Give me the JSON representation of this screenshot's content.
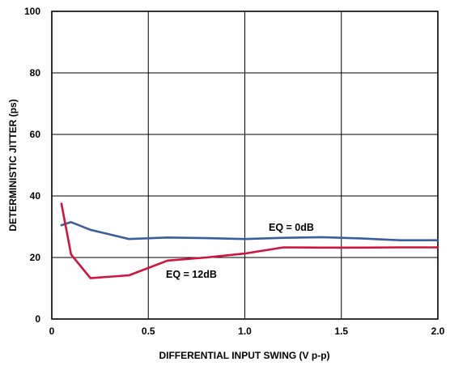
{
  "chart_data": {
    "type": "line",
    "title": "",
    "xlabel": "DIFFERENTIAL INPUT SWING (V p-p)",
    "ylabel": "DETERMINISTIC JITTER (ps)",
    "xlim": [
      0,
      2.0
    ],
    "ylim": [
      0,
      100
    ],
    "xticks": [
      "0",
      "0.5",
      "1.0",
      "1.5",
      "2.0"
    ],
    "yticks": [
      "0",
      "20",
      "40",
      "60",
      "80",
      "100"
    ],
    "grid": true,
    "series": [
      {
        "name": "EQ = 0dB",
        "color": "#3b5e9c",
        "x": [
          0.05,
          0.1,
          0.2,
          0.4,
          0.6,
          0.8,
          1.0,
          1.2,
          1.4,
          1.6,
          1.8,
          2.0
        ],
        "y": [
          30.5,
          31.5,
          29,
          26,
          26.5,
          26.3,
          26,
          26.4,
          26.6,
          26.2,
          25.6,
          25.6
        ]
      },
      {
        "name": "EQ = 12dB",
        "color": "#d2143c",
        "x": [
          0.05,
          0.1,
          0.2,
          0.4,
          0.6,
          0.8,
          1.0,
          1.2,
          1.4,
          1.6,
          1.8,
          2.0
        ],
        "y": [
          37.5,
          21,
          13.3,
          14.2,
          19,
          20,
          21.3,
          23.3,
          23.2,
          23.2,
          23.3,
          23.3
        ]
      }
    ],
    "annotations": [
      "EQ = 0dB",
      "EQ = 12dB"
    ]
  }
}
